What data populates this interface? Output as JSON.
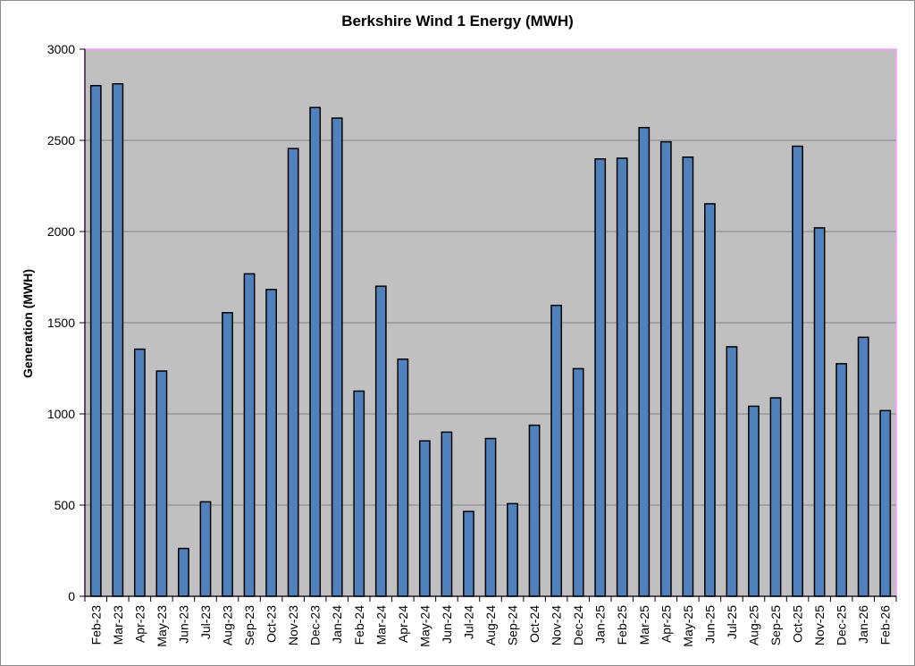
{
  "chart_data": {
    "type": "bar",
    "title": "Berkshire Wind 1 Energy (MWH)",
    "xlabel": "",
    "ylabel": "Generation (MWH)",
    "ylim": [
      0,
      3000
    ],
    "yticks": [
      0,
      500,
      1000,
      1500,
      2000,
      2500,
      3000
    ],
    "grid": true,
    "legend": "none",
    "categories": [
      "Feb-23",
      "Mar-23",
      "Apr-23",
      "May-23",
      "Jun-23",
      "Jul-23",
      "Aug-23",
      "Sep-23",
      "Oct-23",
      "Nov-23",
      "Dec-23",
      "Jan-24",
      "Feb-24",
      "Mar-24",
      "Apr-24",
      "May-24",
      "Jun-24",
      "Jul-24",
      "Aug-24",
      "Sep-24",
      "Oct-24",
      "Nov-24",
      "Dec-24",
      "Jan-25",
      "Feb-25",
      "Mar-25",
      "Apr-25",
      "May-25",
      "Jun-25",
      "Jul-25",
      "Aug-25",
      "Sep-25",
      "Oct-25",
      "Nov-25",
      "Dec-25",
      "Jan-26",
      "Feb-26"
    ],
    "values": [
      2800,
      2810,
      1355,
      1235,
      262,
      518,
      1555,
      1768,
      1682,
      2455,
      2680,
      2622,
      1125,
      1700,
      1300,
      852,
      900,
      465,
      865,
      508,
      938,
      1595,
      1248,
      2398,
      2402,
      2570,
      2492,
      2408,
      2152,
      1368,
      1042,
      1088,
      2468,
      2020,
      1275,
      1420,
      1018
    ],
    "colors": {
      "bar_fill": "#4f81bd",
      "bar_stroke": "#000000",
      "plot_background": "#c0c0c0",
      "gridline": "#808080",
      "plot_border": "#ff99ff"
    }
  }
}
